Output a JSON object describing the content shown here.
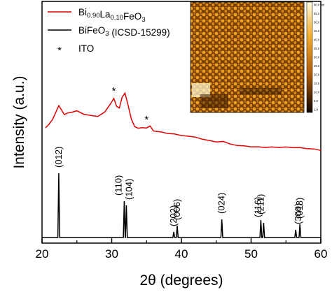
{
  "chart_data": {
    "type": "line",
    "xlabel": "2θ (degrees)",
    "ylabel": "Intensity (a.u.)",
    "xlim": [
      20,
      60
    ],
    "x_ticks": [
      "20",
      "30",
      "40",
      "50",
      "60"
    ],
    "grid": false,
    "legend_position": "top-left",
    "legend": [
      {
        "label_main": "Bi",
        "sub1": "0.90",
        "mid": "La",
        "sub2": "0.10",
        "tail": "FeO",
        "sub3": "3",
        "color": "#e00000",
        "marker": "line"
      },
      {
        "label_main": "BiFeO",
        "sub1": "3",
        "tail": " (ICSD-15299)",
        "color": "#000000",
        "marker": "line"
      },
      {
        "label_main": "ITO",
        "color": "#000000",
        "marker": "*"
      }
    ],
    "series": [
      {
        "name": "Bi0.90La0.10FeO3",
        "color": "#e00000",
        "x": [
          20.5,
          21.0,
          21.5,
          22.0,
          22.4,
          22.8,
          23.2,
          23.7,
          24.2,
          25.0,
          26.0,
          27.0,
          28.0,
          29.0,
          29.8,
          30.3,
          30.7,
          31.1,
          31.5,
          31.9,
          32.3,
          32.8,
          33.3,
          33.8,
          34.3,
          35.0,
          35.5,
          36.0,
          37.0,
          38.0,
          39.0,
          40.0,
          41.0,
          42.0,
          43.0,
          44.0,
          45.0,
          46.0,
          47.0,
          48.0,
          49.0,
          50.0,
          51.0,
          52.0,
          53.0,
          54.0,
          55.0,
          56.0,
          57.0,
          58.0,
          59.0,
          60.0
        ],
        "y": [
          0.3,
          0.33,
          0.37,
          0.44,
          0.5,
          0.46,
          0.42,
          0.44,
          0.45,
          0.47,
          0.44,
          0.43,
          0.42,
          0.46,
          0.53,
          0.58,
          0.5,
          0.48,
          0.58,
          0.62,
          0.52,
          0.38,
          0.31,
          0.3,
          0.31,
          0.31,
          0.33,
          0.28,
          0.27,
          0.25,
          0.24,
          0.22,
          0.21,
          0.2,
          0.18,
          0.17,
          0.16,
          0.17,
          0.15,
          0.14,
          0.14,
          0.13,
          0.13,
          0.12,
          0.12,
          0.11,
          0.11,
          0.1,
          0.1,
          0.09,
          0.09,
          0.08
        ]
      },
      {
        "name": "BiFeO3 (ICSD-15299)",
        "color": "#000000",
        "peaks": [
          {
            "x": 22.4,
            "h": 0.92,
            "label": "(012)"
          },
          {
            "x": 31.8,
            "h": 0.52,
            "label": "(110)"
          },
          {
            "x": 32.1,
            "h": 0.46,
            "label": "(104)"
          },
          {
            "x": 38.9,
            "h": 0.08,
            "label": "(202)"
          },
          {
            "x": 39.4,
            "h": 0.17,
            "label": "(006)"
          },
          {
            "x": 45.8,
            "h": 0.26,
            "label": "(024)"
          },
          {
            "x": 51.4,
            "h": 0.25,
            "label": "(211)"
          },
          {
            "x": 51.8,
            "h": 0.21,
            "label": "(116)"
          },
          {
            "x": 56.4,
            "h": 0.11,
            "label": "(300)"
          },
          {
            "x": 57.0,
            "h": 0.19,
            "label": "(018)"
          }
        ]
      }
    ],
    "annotations": [
      {
        "text": "*",
        "x": 30.3
      },
      {
        "text": "*",
        "x": 35.0
      }
    ],
    "inset": {
      "type": "afm-image",
      "colorbar_ticks": [
        "60.0 nm",
        "55.0",
        "50.0",
        "45.0",
        "40.0",
        "35.0",
        "30.0",
        "25.0",
        "20.0",
        "15.0",
        "10.0",
        "5.0",
        "1.0"
      ]
    }
  }
}
